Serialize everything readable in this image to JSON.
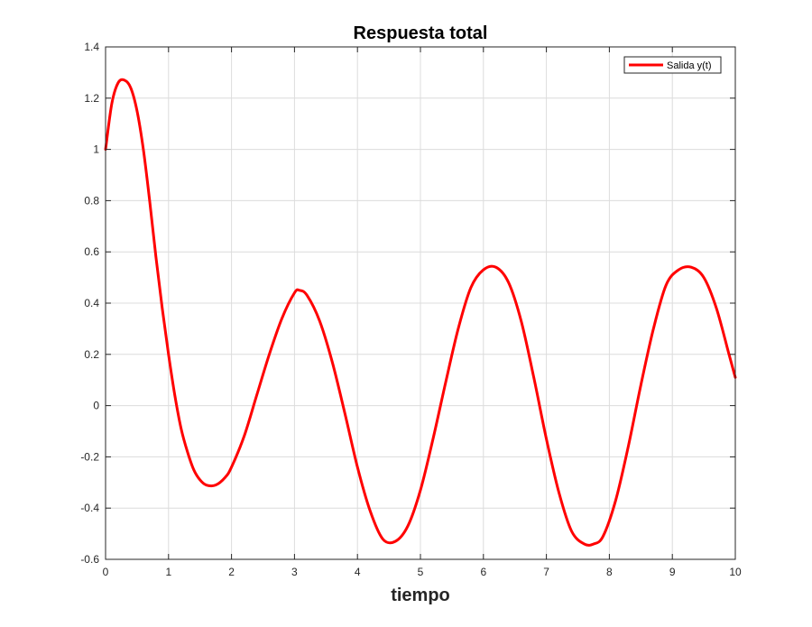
{
  "chart_data": {
    "type": "line",
    "title": "Respuesta total",
    "xlabel": "tiempo",
    "ylabel": "",
    "xlim": [
      0,
      10
    ],
    "ylim": [
      -0.6,
      1.4
    ],
    "xticks": [
      0,
      1,
      2,
      3,
      4,
      5,
      6,
      7,
      8,
      9,
      10
    ],
    "yticks": [
      -0.6,
      -0.4,
      -0.2,
      0,
      0.2,
      0.4,
      0.6,
      0.8,
      1,
      1.2,
      1.4
    ],
    "grid": true,
    "legend_position": "top-right",
    "series": [
      {
        "name": "Salida y(t)",
        "color": "#ff0000",
        "x": [
          0,
          0.1,
          0.2,
          0.3,
          0.4,
          0.5,
          0.6,
          0.7,
          0.8,
          0.9,
          1.0,
          1.1,
          1.2,
          1.3,
          1.4,
          1.5,
          1.6,
          1.75,
          1.9,
          2.0,
          2.2,
          2.4,
          2.6,
          2.8,
          3.0,
          3.08,
          3.2,
          3.4,
          3.6,
          3.8,
          4.0,
          4.2,
          4.4,
          4.6,
          4.8,
          5.0,
          5.2,
          5.4,
          5.6,
          5.8,
          6.0,
          6.2,
          6.4,
          6.6,
          6.8,
          7.0,
          7.2,
          7.4,
          7.6,
          7.75,
          7.9,
          8.1,
          8.3,
          8.5,
          8.7,
          8.9,
          9.1,
          9.3,
          9.5,
          9.7,
          9.9,
          10.0
        ],
        "y": [
          1.0,
          1.18,
          1.26,
          1.27,
          1.24,
          1.15,
          1.0,
          0.8,
          0.58,
          0.38,
          0.2,
          0.04,
          -0.09,
          -0.18,
          -0.25,
          -0.29,
          -0.31,
          -0.31,
          -0.28,
          -0.24,
          -0.12,
          0.04,
          0.2,
          0.34,
          0.44,
          0.45,
          0.43,
          0.33,
          0.17,
          -0.03,
          -0.24,
          -0.41,
          -0.52,
          -0.53,
          -0.47,
          -0.33,
          -0.13,
          0.09,
          0.3,
          0.46,
          0.53,
          0.54,
          0.48,
          0.33,
          0.11,
          -0.13,
          -0.34,
          -0.49,
          -0.54,
          -0.54,
          -0.51,
          -0.37,
          -0.16,
          0.08,
          0.3,
          0.47,
          0.53,
          0.54,
          0.5,
          0.38,
          0.2,
          0.11
        ]
      }
    ]
  }
}
